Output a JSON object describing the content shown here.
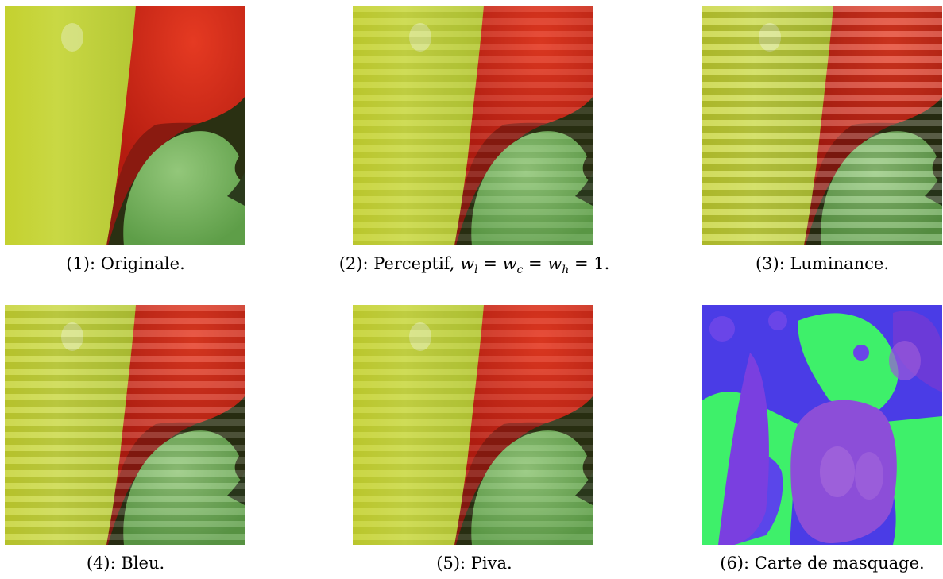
{
  "figure": {
    "panels": [
      {
        "id": "p1",
        "number": "(1):",
        "label": "Originale.",
        "image": "peppers-crop-original",
        "stripes": "none"
      },
      {
        "id": "p2",
        "number": "(2):",
        "label": "Perceptif, ",
        "formula": {
          "w": "w",
          "sub_l": "l",
          "sub_c": "c",
          "sub_h": "h",
          "eq": " = ",
          "one": "1."
        },
        "image": "peppers-crop-perceptual-watermark",
        "stripes": "faint"
      },
      {
        "id": "p3",
        "number": "(3):",
        "label": "Luminance.",
        "image": "peppers-crop-luminance-watermark",
        "stripes": "strong"
      },
      {
        "id": "p4",
        "number": "(4):",
        "label": "Bleu.",
        "image": "peppers-crop-blue-watermark",
        "stripes": "medium"
      },
      {
        "id": "p5",
        "number": "(5):",
        "label": "Piva.",
        "image": "peppers-crop-piva-watermark",
        "stripes": "faint"
      },
      {
        "id": "p6",
        "number": "(6):",
        "label": "Carte de masquage.",
        "image": "peppers-masking-map",
        "stripes": "none"
      }
    ],
    "colors": {
      "pepper_yellow": "#c9d63a",
      "pepper_red": "#d12a18",
      "pepper_green": "#6fb05a",
      "mask_blue": "#4b3ae0",
      "mask_green": "#3ef06a",
      "mask_purple": "#8a4ad8"
    }
  }
}
